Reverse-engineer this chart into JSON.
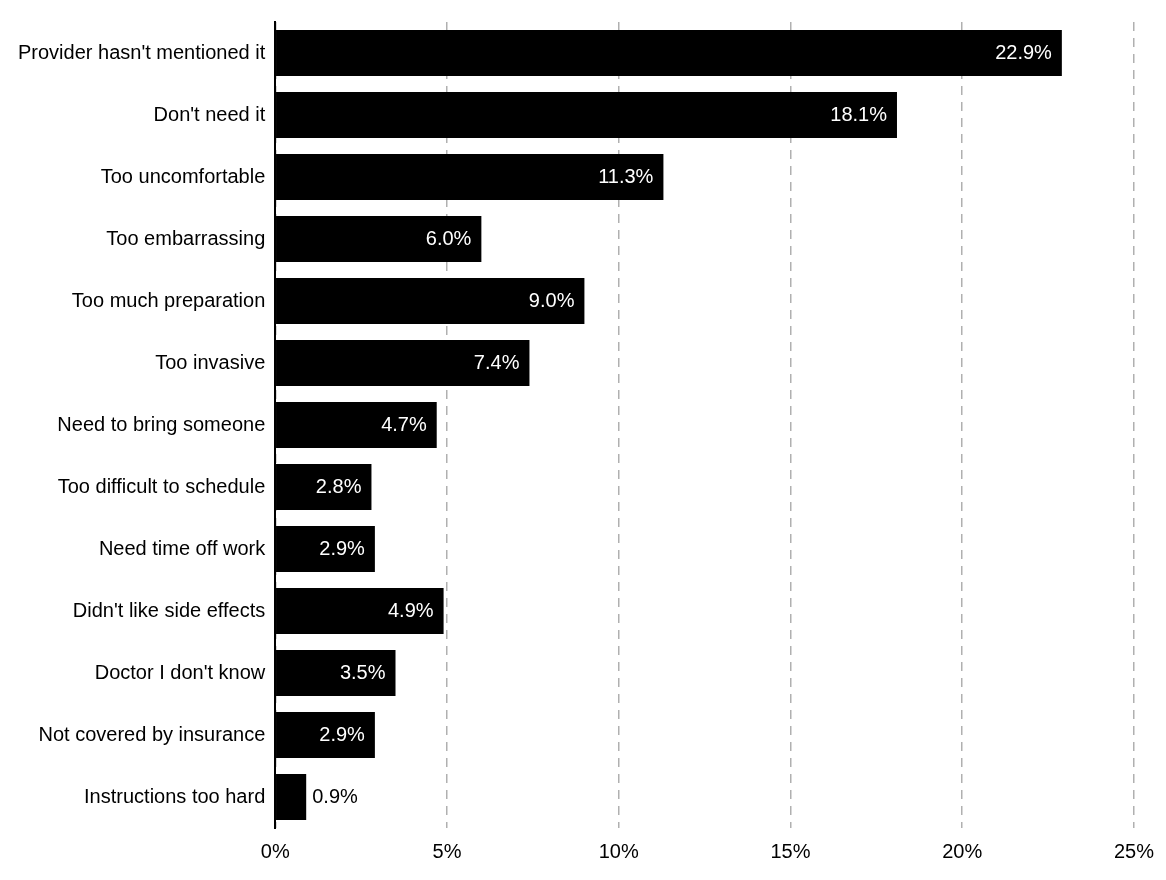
{
  "chart_data": {
    "type": "bar",
    "orientation": "horizontal",
    "categories": [
      "Provider hasn't mentioned it",
      "Don't need it",
      "Too uncomfortable",
      "Too embarrassing",
      "Too much preparation",
      "Too invasive",
      "Need to bring someone",
      "Too difficult to schedule",
      "Need time off work",
      "Didn't like side effects",
      "Doctor I don't know",
      "Not covered by insurance",
      "Instructions too hard"
    ],
    "values": [
      22.9,
      18.1,
      11.3,
      6.0,
      9.0,
      7.4,
      4.7,
      2.8,
      2.9,
      4.9,
      3.5,
      2.9,
      0.9
    ],
    "value_labels": [
      "22.9%",
      "18.1%",
      "11.3%",
      "6.0%",
      "9.0%",
      "7.4%",
      "4.7%",
      "2.8%",
      "2.9%",
      "4.9%",
      "3.5%",
      "2.9%",
      "0.9%"
    ],
    "color": "#000000",
    "xlim": [
      0,
      25
    ],
    "xticks": [
      {
        "value": 0,
        "label": "0%"
      },
      {
        "value": 5,
        "label": "5%"
      },
      {
        "value": 10,
        "label": "10%"
      },
      {
        "value": 15,
        "label": "15%"
      },
      {
        "value": 20,
        "label": "20%"
      },
      {
        "value": 25,
        "label": "25%"
      }
    ],
    "grid": "x",
    "legend": false
  }
}
